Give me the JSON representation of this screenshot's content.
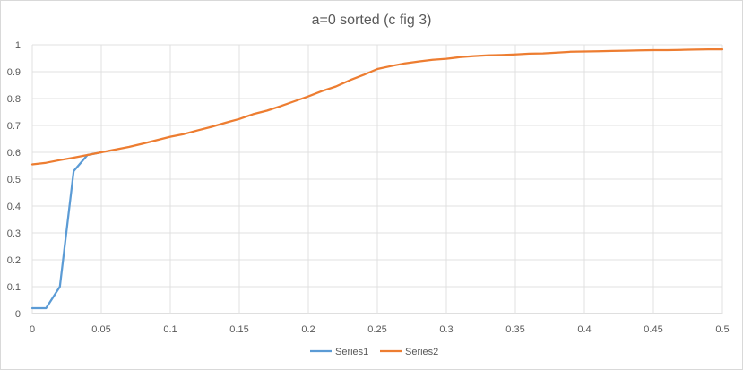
{
  "chart_data": {
    "type": "line",
    "title": "a=0 sorted (c fig 3)",
    "xlabel": "",
    "ylabel": "",
    "xlim": [
      0,
      0.5
    ],
    "ylim": [
      0,
      1
    ],
    "x_ticks": [
      "0",
      "0.05",
      "0.1",
      "0.15",
      "0.2",
      "0.25",
      "0.3",
      "0.35",
      "0.4",
      "0.45",
      "0.5"
    ],
    "y_ticks": [
      "0",
      "0.1",
      "0.2",
      "0.3",
      "0.4",
      "0.5",
      "0.6",
      "0.7",
      "0.8",
      "0.9",
      "1"
    ],
    "grid": {
      "vertical": true,
      "horizontal": true
    },
    "legend_position": "bottom",
    "series": [
      {
        "name": "Series1",
        "color": "#5b9bd5",
        "x": [
          0,
          0.01,
          0.02,
          0.03,
          0.04,
          0.05
        ],
        "y": [
          0.02,
          0.02,
          0.1,
          0.53,
          0.59,
          0.6
        ]
      },
      {
        "name": "Series2",
        "color": "#ed7d31",
        "x": [
          0,
          0.01,
          0.02,
          0.03,
          0.04,
          0.05,
          0.06,
          0.07,
          0.08,
          0.09,
          0.1,
          0.11,
          0.12,
          0.13,
          0.14,
          0.15,
          0.16,
          0.17,
          0.18,
          0.19,
          0.2,
          0.21,
          0.22,
          0.23,
          0.24,
          0.25,
          0.26,
          0.27,
          0.28,
          0.29,
          0.3,
          0.31,
          0.32,
          0.33,
          0.34,
          0.35,
          0.36,
          0.37,
          0.38,
          0.39,
          0.4,
          0.41,
          0.42,
          0.43,
          0.44,
          0.45,
          0.46,
          0.47,
          0.48,
          0.49,
          0.5
        ],
        "y": [
          0.555,
          0.561,
          0.571,
          0.58,
          0.59,
          0.6,
          0.61,
          0.62,
          0.632,
          0.645,
          0.658,
          0.668,
          0.682,
          0.695,
          0.71,
          0.724,
          0.742,
          0.755,
          0.772,
          0.79,
          0.808,
          0.828,
          0.845,
          0.868,
          0.888,
          0.91,
          0.921,
          0.931,
          0.938,
          0.944,
          0.948,
          0.954,
          0.958,
          0.961,
          0.962,
          0.964,
          0.967,
          0.968,
          0.971,
          0.974,
          0.975,
          0.976,
          0.977,
          0.978,
          0.979,
          0.98,
          0.98,
          0.981,
          0.982,
          0.983,
          0.983
        ]
      }
    ]
  }
}
